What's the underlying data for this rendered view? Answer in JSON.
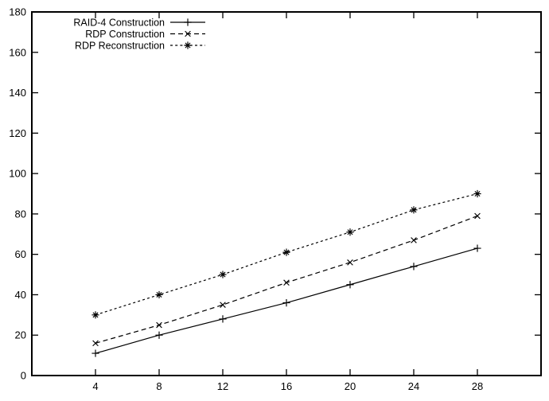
{
  "figure": {
    "background": "#ffffff",
    "line_color": "#000000"
  },
  "chart_data": {
    "type": "line",
    "title": "",
    "xlabel": "",
    "ylabel": "",
    "xlim": [
      0,
      32
    ],
    "ylim": [
      0,
      180
    ],
    "x_ticks": [
      4,
      8,
      12,
      16,
      20,
      24,
      28
    ],
    "y_ticks": [
      0,
      20,
      40,
      60,
      80,
      100,
      120,
      140,
      160,
      180
    ],
    "grid": false,
    "legend_position": "top-left-inside",
    "x": [
      4,
      8,
      12,
      16,
      20,
      24,
      28
    ],
    "series": [
      {
        "name": "RAID-4 Construction",
        "slug": "raid-4-construction",
        "marker": "plus",
        "line_style": "solid",
        "color": "#000000",
        "values": [
          11,
          20,
          28,
          36,
          45,
          54,
          63
        ]
      },
      {
        "name": "RDP Construction",
        "slug": "rdp-construction",
        "marker": "cross",
        "line_style": "dashed",
        "color": "#000000",
        "values": [
          16,
          25,
          35,
          46,
          56,
          67,
          79
        ]
      },
      {
        "name": "RDP Reconstruction",
        "slug": "rdp-reconstruction",
        "marker": "asterisk",
        "line_style": "short-dash",
        "color": "#000000",
        "values": [
          30,
          40,
          50,
          61,
          71,
          82,
          90
        ]
      }
    ]
  }
}
